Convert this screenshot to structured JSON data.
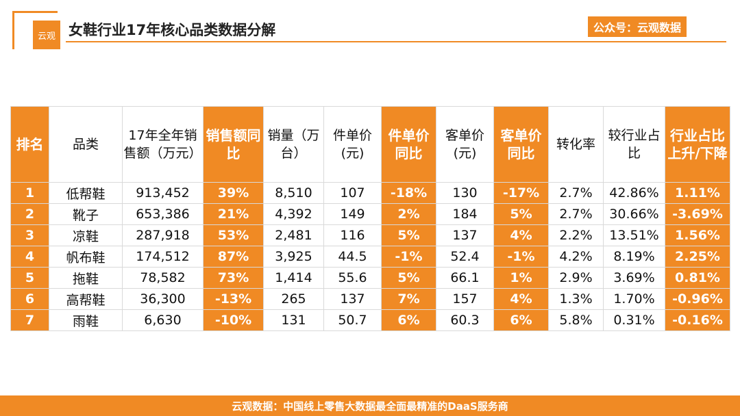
{
  "header": {
    "logo_text": "云观",
    "title": "女鞋行业17年核心品类数据分解",
    "account_badge": "公众号：云观数据"
  },
  "table": {
    "columns": [
      {
        "label": "排名",
        "highlight": true
      },
      {
        "label": "品类",
        "highlight": false
      },
      {
        "label": "17年全年销售额（万元）",
        "highlight": false
      },
      {
        "label": "销售额同比",
        "highlight": true
      },
      {
        "label": "销量（万台）",
        "highlight": false
      },
      {
        "label": "件单价(元)",
        "highlight": false
      },
      {
        "label": "件单价同比",
        "highlight": true
      },
      {
        "label": "客单价(元)",
        "highlight": false
      },
      {
        "label": "客单价同比",
        "highlight": true
      },
      {
        "label": "转化率",
        "highlight": false
      },
      {
        "label": "较行业占比",
        "highlight": false
      },
      {
        "label": "行业占比上升/下降",
        "highlight": true
      }
    ],
    "rows": [
      [
        "1",
        "低帮鞋",
        "913,452",
        "39%",
        "8,510",
        "107",
        "-18%",
        "130",
        "-17%",
        "2.7%",
        "42.86%",
        "1.11%"
      ],
      [
        "2",
        "靴子",
        "653,386",
        "21%",
        "4,392",
        "149",
        "2%",
        "184",
        "5%",
        "2.7%",
        "30.66%",
        "-3.69%"
      ],
      [
        "3",
        "凉鞋",
        "287,918",
        "53%",
        "2,481",
        "116",
        "5%",
        "137",
        "4%",
        "2.2%",
        "13.51%",
        "1.56%"
      ],
      [
        "4",
        "帆布鞋",
        "174,512",
        "87%",
        "3,925",
        "44.5",
        "-1%",
        "52.4",
        "-1%",
        "4.2%",
        "8.19%",
        "2.25%"
      ],
      [
        "5",
        "拖鞋",
        "78,582",
        "73%",
        "1,414",
        "55.6",
        "5%",
        "66.1",
        "1%",
        "2.9%",
        "3.69%",
        "0.81%"
      ],
      [
        "6",
        "高帮鞋",
        "36,300",
        "-13%",
        "265",
        "137",
        "7%",
        "157",
        "4%",
        "1.3%",
        "1.70%",
        "-0.96%"
      ],
      [
        "7",
        "雨鞋",
        "6,630",
        "-10%",
        "131",
        "50.7",
        "6%",
        "60.3",
        "6%",
        "5.8%",
        "0.31%",
        "-0.16%"
      ]
    ]
  },
  "footer": {
    "text": "云观数据：中国线上零售大数据最全面最精准的DaaS服务商"
  },
  "colors": {
    "accent": "#f08a24"
  }
}
